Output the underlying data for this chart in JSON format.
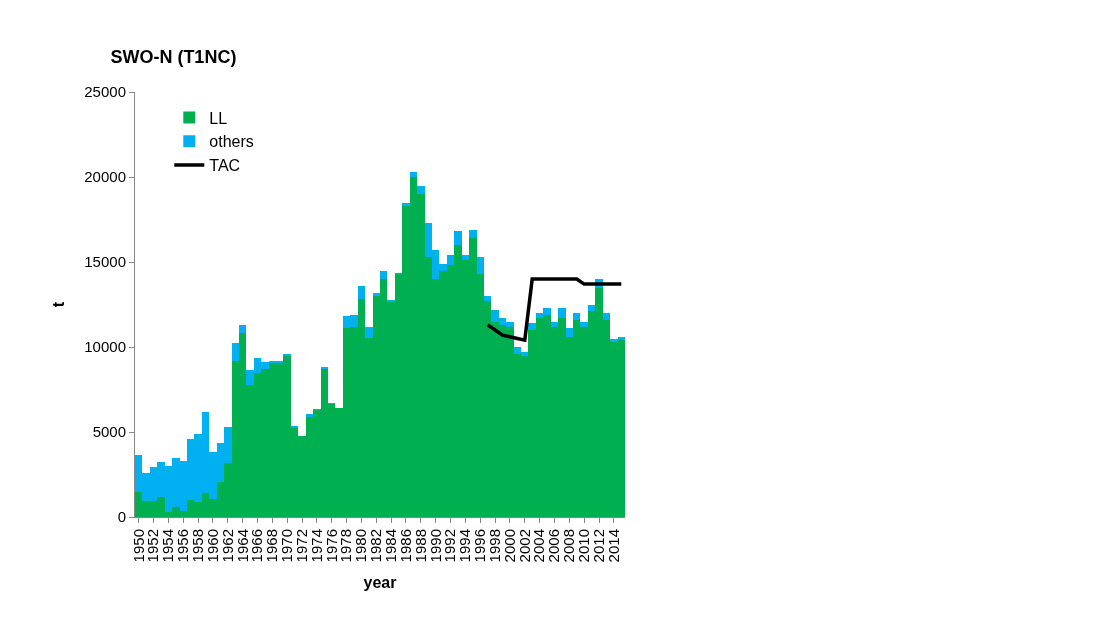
{
  "chart_data": {
    "type": "bar",
    "stacked": true,
    "title": "SWO-N (T1NC)",
    "xlabel": "year",
    "ylabel": "t",
    "categories": [
      "1950",
      null,
      "1952",
      null,
      "1954",
      null,
      "1956",
      null,
      "1958",
      null,
      "1960",
      null,
      "1962",
      null,
      "1964",
      null,
      "1966",
      null,
      "1968",
      null,
      "1970",
      null,
      "1972",
      null,
      "1974",
      null,
      "1976",
      null,
      "1978",
      null,
      "1980",
      null,
      "1982",
      null,
      "1984",
      null,
      "1986",
      null,
      "1988",
      null,
      "1990",
      null,
      "1992",
      null,
      "1994",
      null,
      "1996",
      null,
      "1998",
      null,
      "2000",
      null,
      "2002",
      null,
      "2004",
      null,
      "2006",
      null,
      "2008",
      null,
      "2010",
      null,
      "2012",
      null,
      "2014",
      null
    ],
    "series": [
      {
        "name": "LL",
        "color": "#00b050",
        "values": [
          1470,
          950,
          950,
          1200,
          300,
          600,
          350,
          1000,
          900,
          1400,
          1050,
          2050,
          3200,
          9200,
          10800,
          7750,
          8450,
          8700,
          9100,
          9100,
          9500,
          5250,
          4750,
          5900,
          6300,
          8750,
          6650,
          6400,
          11100,
          11200,
          12800,
          10550,
          13000,
          14000,
          12700,
          14300,
          18300,
          20000,
          19000,
          15300,
          14000,
          14500,
          14800,
          16000,
          15100,
          16400,
          14300,
          12700,
          11500,
          11300,
          11200,
          9600,
          9500,
          11000,
          11700,
          11900,
          11200,
          11700,
          10600,
          11600,
          11200,
          12100,
          13500,
          11600,
          10300,
          10400
        ]
      },
      {
        "name": "others",
        "color": "#00b0f0",
        "values": [
          2180,
          1650,
          2000,
          2050,
          2700,
          2850,
          2950,
          3600,
          4000,
          4800,
          2750,
          2300,
          2100,
          1050,
          500,
          900,
          900,
          400,
          100,
          100,
          100,
          50,
          0,
          150,
          50,
          50,
          50,
          0,
          700,
          700,
          800,
          650,
          200,
          500,
          50,
          50,
          200,
          300,
          500,
          2000,
          1700,
          400,
          600,
          800,
          300,
          500,
          1000,
          300,
          700,
          400,
          300,
          400,
          200,
          400,
          300,
          400,
          300,
          600,
          500,
          400,
          300,
          400,
          500,
          400,
          200,
          200
        ]
      },
      {
        "name": "TAC",
        "type": "line",
        "color": "#000000",
        "values": [
          null,
          null,
          null,
          null,
          null,
          null,
          null,
          null,
          null,
          null,
          null,
          null,
          null,
          null,
          null,
          null,
          null,
          null,
          null,
          null,
          null,
          null,
          null,
          null,
          null,
          null,
          null,
          null,
          null,
          null,
          null,
          null,
          null,
          null,
          null,
          null,
          null,
          null,
          null,
          null,
          null,
          null,
          null,
          null,
          null,
          null,
          null,
          11300,
          11000,
          10700,
          10600,
          10500,
          10400,
          14000,
          14000,
          14000,
          14000,
          14000,
          14000,
          14000,
          13700,
          13700,
          13700,
          13700,
          13700,
          13700
        ]
      }
    ],
    "ylim": [
      0,
      25000
    ],
    "yticks": [
      0,
      5000,
      10000,
      15000,
      20000,
      25000
    ],
    "legend": "top left"
  }
}
